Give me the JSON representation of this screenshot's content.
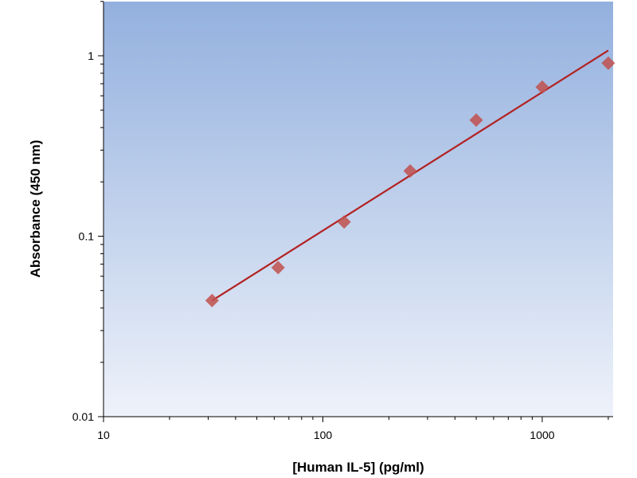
{
  "chart_data": {
    "type": "scatter",
    "xlabel": "[Human IL-5] (pg/ml)",
    "ylabel": "Absorbance (450 nm)",
    "x_scale": "log",
    "y_scale": "log",
    "xlim": [
      10,
      2000
    ],
    "ylim": [
      0.01,
      2
    ],
    "x_ticks": [
      {
        "value": 10,
        "label": "10"
      },
      {
        "value": 100,
        "label": "100"
      },
      {
        "value": 1000,
        "label": "1000"
      }
    ],
    "y_ticks": [
      {
        "value": 0.01,
        "label": "0.01"
      },
      {
        "value": 0.1,
        "label": "0.1"
      },
      {
        "value": 1,
        "label": "1"
      }
    ],
    "grid": false,
    "series": [
      {
        "marker": "diamond",
        "color": "#c0504d",
        "x": [
          31.25,
          62.5,
          125,
          250,
          500,
          1000,
          2000
        ],
        "y": [
          0.044,
          0.067,
          0.12,
          0.23,
          0.44,
          0.67,
          0.91
        ]
      }
    ],
    "fit_line": {
      "color": "#b22222",
      "x": [
        31.25,
        2000
      ],
      "y": [
        0.044,
        1.07
      ]
    },
    "plot_background": {
      "top": "#93b0de",
      "bottom": "#eef2fa"
    }
  }
}
